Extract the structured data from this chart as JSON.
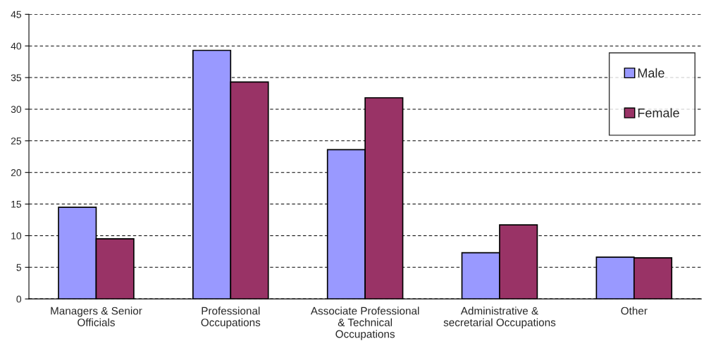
{
  "chart_data": {
    "type": "bar",
    "categories": [
      "Managers & Senior\nOfficials",
      "Professional\nOccupations",
      "Associate Professional\n& Technical\nOccupations",
      "Administrative &\nsecretarial Occupations",
      "Other"
    ],
    "series": [
      {
        "name": "Male",
        "color": "#9999ff",
        "values": [
          14.5,
          39.3,
          23.6,
          7.3,
          6.6
        ]
      },
      {
        "name": "Female",
        "color": "#993366",
        "values": [
          9.5,
          34.3,
          31.8,
          11.7,
          6.5
        ]
      }
    ],
    "ylim": [
      0,
      45
    ],
    "yticks": [
      0,
      5,
      10,
      15,
      20,
      25,
      30,
      35,
      40,
      45
    ],
    "grid": "y",
    "legend": "right",
    "line_style": "dashed"
  }
}
